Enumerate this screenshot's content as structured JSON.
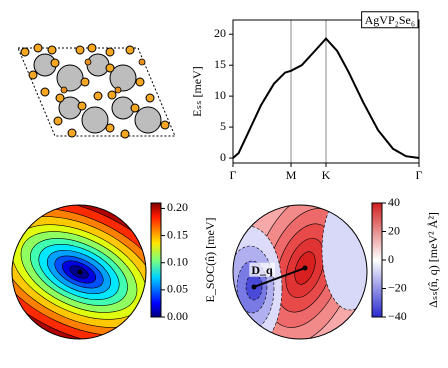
{
  "chart_data": [
    {
      "type": "line",
      "annotation": "AgVP₂Se₆",
      "y_label": "Eₛₛ [meV]",
      "x": [
        0,
        0.03,
        0.08,
        0.15,
        0.22,
        0.28,
        0.312,
        0.37,
        0.44,
        0.5,
        0.56,
        0.62,
        0.7,
        0.78,
        0.86,
        0.93,
        1
      ],
      "values": [
        0,
        0.8,
        4,
        8.5,
        12,
        13.8,
        14.1,
        15,
        17.3,
        19.3,
        17.3,
        14,
        9,
        4.5,
        1.5,
        0.3,
        0
      ],
      "color": "#000000",
      "xlim": [
        0,
        1
      ],
      "xticks": [
        {
          "value": 0,
          "label": "Γ"
        },
        {
          "value": 0.312,
          "label": "M"
        },
        {
          "value": 0.5,
          "label": "K"
        },
        {
          "value": 1,
          "label": "Γ"
        }
      ],
      "xgrid": true,
      "ylim": [
        -0.8,
        22.3
      ],
      "yticks": [
        0,
        5,
        10,
        15,
        20
      ]
    },
    {
      "type": "contour",
      "colormap": "jet",
      "colorbar_label": "E_SOC(n̂) [meV]",
      "clim": [
        0,
        0.21
      ],
      "cticks": [
        {
          "value": 0,
          "label": "0.00"
        },
        {
          "value": 0.05,
          "label": "0.05"
        },
        {
          "value": 0.1,
          "label": "0.10"
        },
        {
          "value": 0.15,
          "label": "0.15"
        },
        {
          "value": 0.2,
          "label": "0.20"
        }
      ]
    },
    {
      "type": "contour",
      "colormap": "bwr",
      "colorbar_label": "Δₛₛ(n̂, q) [meV² Å²]",
      "annotation": "D_q",
      "clim": [
        -40,
        40
      ],
      "cticks": [
        {
          "value": -40,
          "label": "−40"
        },
        {
          "value": -20,
          "label": "−20"
        },
        0,
        20,
        40
      ]
    }
  ]
}
